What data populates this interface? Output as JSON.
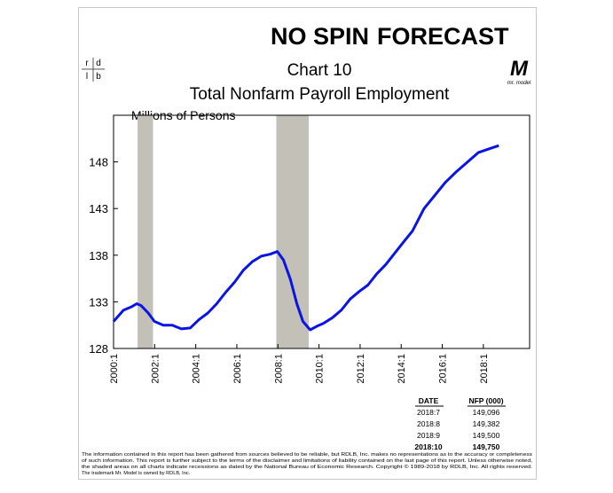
{
  "header": {
    "brand_left": "NO SPIN",
    "brand_right": "FORECAST",
    "rdlb_logo": [
      "r",
      "d",
      "l",
      "b"
    ],
    "model_logo": "M",
    "model_caption": "mr. model"
  },
  "chart_data": {
    "type": "line",
    "title": "Chart 10",
    "subtitle": "Total Nonfarm Payroll Employment",
    "y_label": "Millions of Persons",
    "color": "#0a14e6",
    "x": [
      2000.0,
      2000.48,
      2000.9,
      2001.13,
      2001.34,
      2001.69,
      2001.99,
      2002.42,
      2002.86,
      2003.3,
      2003.73,
      2004.16,
      2004.59,
      2005.02,
      2005.45,
      2005.89,
      2006.32,
      2006.75,
      2007.19,
      2007.62,
      2007.97,
      2008.27,
      2008.61,
      2008.92,
      2009.22,
      2009.57,
      2009.91,
      2010.22,
      2010.65,
      2011.08,
      2011.52,
      2011.95,
      2012.38,
      2012.81,
      2013.25,
      2013.68,
      2014.11,
      2014.55,
      2015.11,
      2015.63,
      2016.15,
      2016.71,
      2017.23,
      2017.75,
      2018.27,
      2018.75
    ],
    "values": [
      130.9,
      132.1,
      132.5,
      132.8,
      132.6,
      131.8,
      130.9,
      130.5,
      130.5,
      130.1,
      130.2,
      131.1,
      131.8,
      132.8,
      134.0,
      135.1,
      136.4,
      137.3,
      137.9,
      138.1,
      138.4,
      137.5,
      135.4,
      132.8,
      130.9,
      130.0,
      130.4,
      130.7,
      131.3,
      132.1,
      133.3,
      134.1,
      134.8,
      136.0,
      137.0,
      138.2,
      139.4,
      140.6,
      143.0,
      144.4,
      145.8,
      147.0,
      148.0,
      149.0,
      149.4,
      149.75
    ],
    "recessions": [
      [
        2001.17,
        2001.92
      ],
      [
        2007.92,
        2009.5
      ]
    ],
    "xlim": [
      2000,
      2020.25
    ],
    "xticks": [
      {
        "value": 2000,
        "label": "2000:1"
      },
      {
        "value": 2002,
        "label": "2002:1"
      },
      {
        "value": 2004,
        "label": "2004:1"
      },
      {
        "value": 2006,
        "label": "2006:1"
      },
      {
        "value": 2008,
        "label": "2008:1"
      },
      {
        "value": 2010,
        "label": "2010:1"
      },
      {
        "value": 2012,
        "label": "2012:1"
      },
      {
        "value": 2014,
        "label": "2014:1"
      },
      {
        "value": 2016,
        "label": "2016:1"
      },
      {
        "value": 2018,
        "label": "2018:1"
      }
    ],
    "ylim": [
      128,
      153
    ],
    "yticks": [
      128,
      133,
      138,
      143,
      148
    ],
    "grid": false
  },
  "table": {
    "columns": [
      "DATE",
      "NFP (000)"
    ],
    "rows": [
      [
        "2018:7",
        "149,096"
      ],
      [
        "2018:8",
        "149,382"
      ],
      [
        "2018:9",
        "149,500"
      ],
      [
        "2018:10",
        "149,750"
      ]
    ]
  },
  "footer": [
    "The information contained in this report has been gathered from sources believed to be reliable, but RDLB, Inc. makes no representations as to the accuracy or completeness",
    "of such information. This report is further subject to the terms of the disclaimer and limitations of liability contained on the last page of this report. Unless otherwise noted,",
    "the shaded areas on all charts indicate recessions as dated by the National Bureau of Economic Research. Copyright © 1989-2018 by RDLB, Inc. All rights reserved.",
    "The trademark Mr. Model is owned by RDLB, Inc."
  ]
}
